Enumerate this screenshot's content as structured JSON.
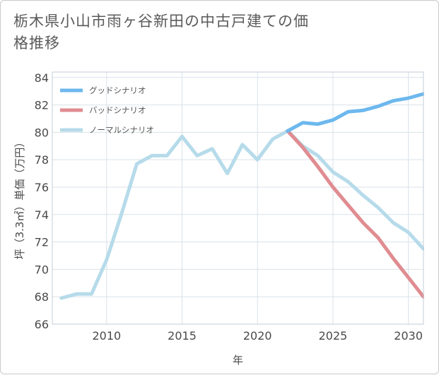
{
  "chart_data": {
    "type": "line",
    "title": "栃木県小山市雨ヶ谷新田の中古戸建ての価格推移",
    "xlabel": "年",
    "ylabel": "坪（3.3㎡）単価（万円）",
    "xlim": [
      2006.4,
      2031
    ],
    "ylim": [
      66,
      84.4
    ],
    "xticks": [
      2010,
      2015,
      2020,
      2025,
      2030
    ],
    "yticks": [
      66,
      68,
      70,
      72,
      74,
      76,
      78,
      80,
      82,
      84
    ],
    "legend_position": "top-left",
    "series": [
      {
        "name": "グッドシナリオ",
        "color": "#6cb8ee",
        "x": [
          2022,
          2023,
          2024,
          2025,
          2026,
          2027,
          2028,
          2029,
          2030,
          2031
        ],
        "y": [
          80.1,
          80.7,
          80.6,
          80.9,
          81.5,
          81.6,
          81.9,
          82.3,
          82.5,
          82.8
        ]
      },
      {
        "name": "バッドシナリオ",
        "color": "#e08c91",
        "x": [
          2022,
          2023,
          2024,
          2025,
          2026,
          2027,
          2028,
          2029,
          2030,
          2031
        ],
        "y": [
          80.1,
          78.9,
          77.5,
          76.0,
          74.7,
          73.4,
          72.3,
          70.8,
          69.4,
          68.0
        ]
      },
      {
        "name": "ノーマルシナリオ",
        "color": "#b6dbea",
        "x": [
          2007,
          2008,
          2009,
          2010,
          2011,
          2012,
          2013,
          2014,
          2015,
          2016,
          2017,
          2018,
          2019,
          2020,
          2021,
          2022,
          2023,
          2024,
          2025,
          2026,
          2027,
          2028,
          2029,
          2030,
          2031
        ],
        "y": [
          67.9,
          68.2,
          68.2,
          70.7,
          74.1,
          77.7,
          78.3,
          78.3,
          79.7,
          78.3,
          78.8,
          77.0,
          79.1,
          78.0,
          79.5,
          80.1,
          79.0,
          78.3,
          77.1,
          76.4,
          75.4,
          74.5,
          73.4,
          72.7,
          71.5
        ]
      }
    ]
  }
}
